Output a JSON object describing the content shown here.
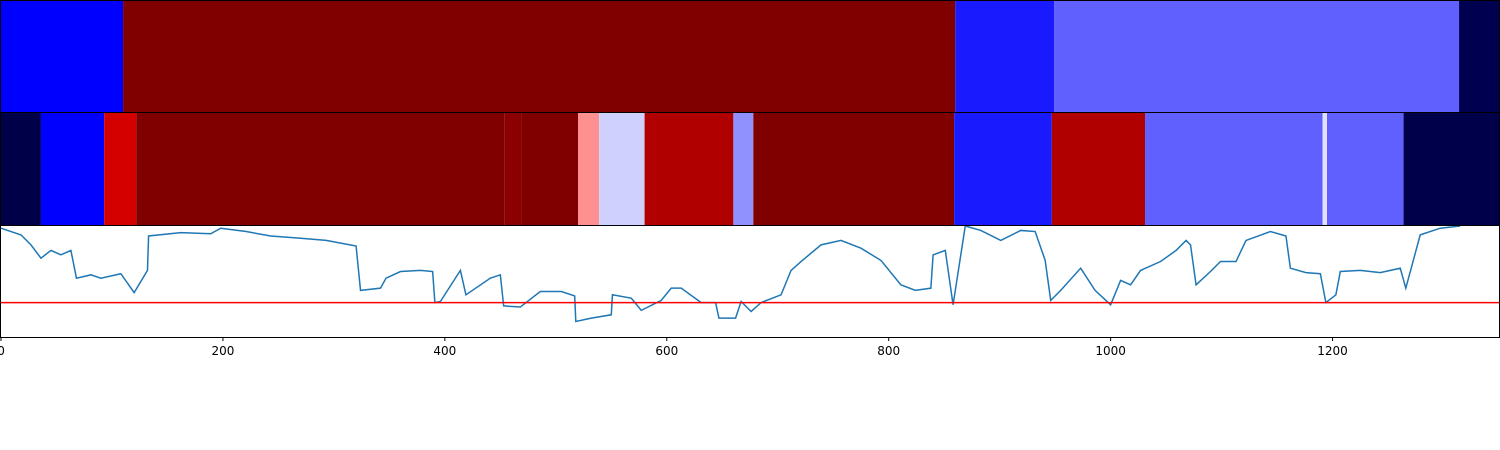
{
  "chart_data": [
    {
      "type": "strip",
      "xlim": [
        0,
        1350
      ],
      "segments": [
        {
          "start": 0,
          "end": 110,
          "color": "#0000ff"
        },
        {
          "start": 110,
          "end": 860,
          "color": "#800000"
        },
        {
          "start": 860,
          "end": 949,
          "color": "#1a1aff"
        },
        {
          "start": 949,
          "end": 1314,
          "color": "#6060ff"
        },
        {
          "start": 1314,
          "end": 1350,
          "color": "#000050"
        }
      ]
    },
    {
      "type": "strip",
      "xlim": [
        0,
        1350
      ],
      "segments": [
        {
          "start": 0,
          "end": 36,
          "color": "#000048"
        },
        {
          "start": 36,
          "end": 93,
          "color": "#0000ff"
        },
        {
          "start": 93,
          "end": 122,
          "color": "#d40000"
        },
        {
          "start": 122,
          "end": 454,
          "color": "#800000"
        },
        {
          "start": 454,
          "end": 469,
          "color": "#8b0000"
        },
        {
          "start": 469,
          "end": 520,
          "color": "#800000"
        },
        {
          "start": 520,
          "end": 539,
          "color": "#ff9090"
        },
        {
          "start": 539,
          "end": 580,
          "color": "#d0d0ff"
        },
        {
          "start": 580,
          "end": 660,
          "color": "#b00000"
        },
        {
          "start": 660,
          "end": 678,
          "color": "#9090ff"
        },
        {
          "start": 678,
          "end": 859,
          "color": "#800000"
        },
        {
          "start": 859,
          "end": 947,
          "color": "#1a1aff"
        },
        {
          "start": 947,
          "end": 1031,
          "color": "#b00000"
        },
        {
          "start": 1031,
          "end": 1191,
          "color": "#6060ff"
        },
        {
          "start": 1191,
          "end": 1195,
          "color": "#e0e0ff"
        },
        {
          "start": 1195,
          "end": 1264,
          "color": "#6060ff"
        },
        {
          "start": 1264,
          "end": 1350,
          "color": "#00004a"
        }
      ]
    },
    {
      "type": "line",
      "xlim": [
        0,
        1350
      ],
      "ylim": [
        0,
        1
      ],
      "xticks": [
        0,
        200,
        400,
        600,
        800,
        1000,
        1200
      ],
      "hline": {
        "value": 0.31,
        "color": "#ff0000"
      },
      "series": [
        {
          "color": "#1f77b4",
          "x": [
            0,
            18,
            27,
            36,
            45,
            54,
            63,
            68,
            81,
            90,
            108,
            120,
            132,
            133,
            162,
            189,
            198,
            221,
            243,
            270,
            293,
            320,
            324,
            342,
            347,
            360,
            378,
            389,
            391,
            396,
            414,
            419,
            441,
            450,
            453,
            468,
            486,
            505,
            517,
            518,
            532,
            550,
            551,
            568,
            577,
            595,
            604,
            613,
            631,
            644,
            647,
            662,
            667,
            676,
            685,
            703,
            712,
            721,
            739,
            757,
            775,
            793,
            811,
            824,
            838,
            840,
            851,
            858,
            869,
            883,
            901,
            919,
            932,
            941,
            946,
            955,
            973,
            986,
            1000,
            1009,
            1018,
            1027,
            1045,
            1059,
            1068,
            1072,
            1077,
            1090,
            1099,
            1113,
            1122,
            1144,
            1158,
            1162,
            1176,
            1189,
            1194,
            1203,
            1207,
            1225,
            1243,
            1261,
            1266,
            1279,
            1297,
            1315
          ],
          "values": [
            0.98,
            0.92,
            0.83,
            0.71,
            0.78,
            0.74,
            0.78,
            0.53,
            0.56,
            0.53,
            0.57,
            0.4,
            0.6,
            0.91,
            0.94,
            0.93,
            0.98,
            0.95,
            0.91,
            0.89,
            0.87,
            0.82,
            0.42,
            0.44,
            0.53,
            0.59,
            0.6,
            0.59,
            0.31,
            0.32,
            0.6,
            0.38,
            0.53,
            0.56,
            0.28,
            0.27,
            0.41,
            0.41,
            0.37,
            0.14,
            0.17,
            0.2,
            0.38,
            0.35,
            0.24,
            0.33,
            0.44,
            0.44,
            0.31,
            0.31,
            0.17,
            0.17,
            0.32,
            0.23,
            0.31,
            0.38,
            0.6,
            0.68,
            0.83,
            0.87,
            0.8,
            0.69,
            0.47,
            0.42,
            0.44,
            0.74,
            0.78,
            0.29,
            1.0,
            0.96,
            0.87,
            0.96,
            0.95,
            0.69,
            0.33,
            0.42,
            0.62,
            0.42,
            0.29,
            0.51,
            0.47,
            0.6,
            0.68,
            0.78,
            0.87,
            0.83,
            0.47,
            0.59,
            0.68,
            0.68,
            0.87,
            0.95,
            0.91,
            0.62,
            0.58,
            0.57,
            0.31,
            0.38,
            0.59,
            0.6,
            0.58,
            0.62,
            0.44,
            0.92,
            0.98,
            1.0
          ]
        }
      ]
    }
  ]
}
